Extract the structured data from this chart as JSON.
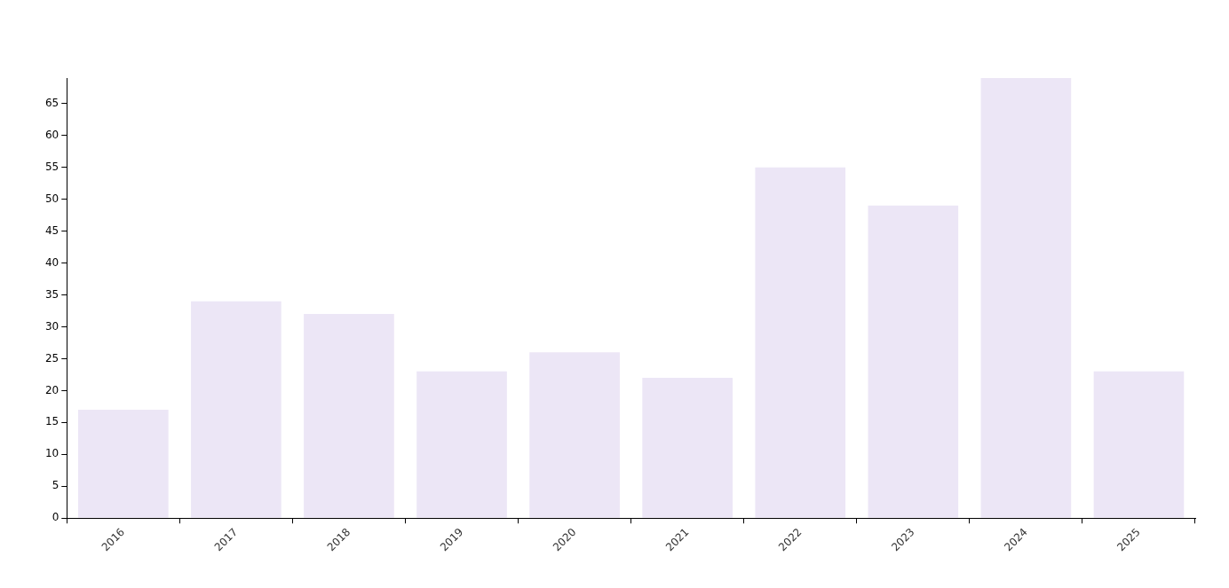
{
  "chart_data": {
    "type": "bar",
    "categories": [
      "2016",
      "2017",
      "2018",
      "2019",
      "2020",
      "2021",
      "2022",
      "2023",
      "2024",
      "2025"
    ],
    "values": [
      17,
      34,
      32,
      23,
      26,
      22,
      55,
      49,
      69,
      23
    ],
    "color": "#ece6f6",
    "ylim": [
      0,
      69
    ],
    "yticks": [
      0,
      5,
      10,
      15,
      20,
      25,
      30,
      35,
      40,
      45,
      50,
      55,
      60,
      65
    ],
    "grid": false,
    "legend": false
  }
}
